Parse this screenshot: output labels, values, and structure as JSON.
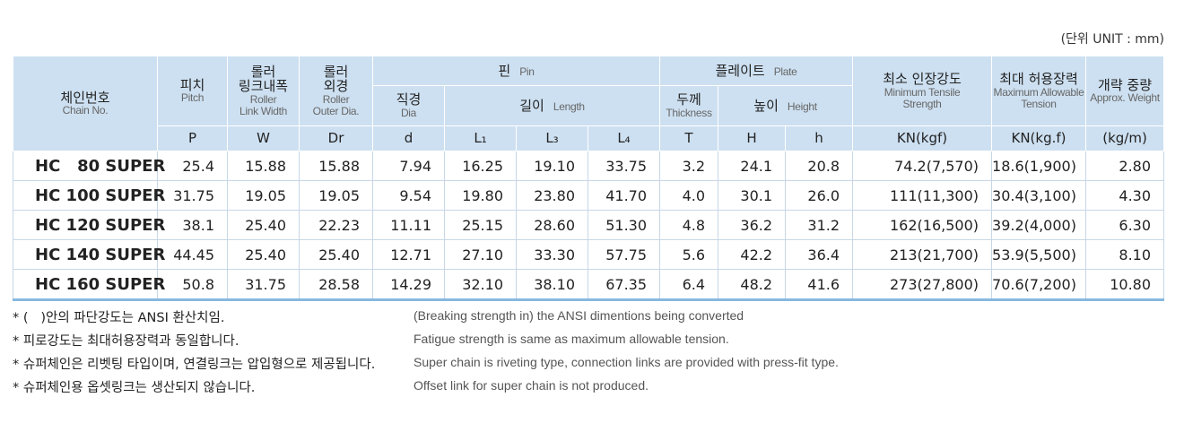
{
  "unit_note": "(단위 UNIT : mm)",
  "table": {
    "header": {
      "chain": {
        "ko": "체인번호",
        "en": "Chain No."
      },
      "pitch": {
        "ko": "피치",
        "en": "Pitch",
        "symbol": "P"
      },
      "width": {
        "ko": [
          "롤러",
          "링크내폭"
        ],
        "en": [
          "Roller",
          "Link Width"
        ],
        "symbol": "W"
      },
      "roller": {
        "ko": [
          "롤러",
          "외경"
        ],
        "en": [
          "Roller",
          "Outer Dia."
        ],
        "symbol": "Dr"
      },
      "pin": {
        "ko": "핀",
        "en": "Pin",
        "dia": {
          "ko": "직경",
          "en": "Dia",
          "symbol": "d"
        },
        "length": {
          "ko": "길이",
          "en": "Length",
          "symbols": [
            "L₁",
            "L₃",
            "L₄"
          ]
        }
      },
      "plate": {
        "ko": "플레이트",
        "en": "Plate",
        "thickness": {
          "ko": "두께",
          "en": "Thickness",
          "symbol": "T"
        },
        "height": {
          "ko": "높이",
          "en": "Height",
          "symbols": [
            "H",
            "h"
          ]
        }
      },
      "tensile": {
        "ko": "최소 인장강도",
        "en": [
          "Minimum Tensile",
          "Strength"
        ],
        "symbol": "KN(kgf)"
      },
      "tension": {
        "ko": "최대 허용장력",
        "en": [
          "Maximum Allowable",
          "Tension"
        ],
        "symbol": "KN(kg.f)"
      },
      "weight": {
        "ko": "개략 중량",
        "en": "Approx. Weight",
        "symbol": "(kg/m)"
      }
    },
    "rows": [
      [
        "HC   80 SUPER",
        "25.4",
        "15.88",
        "15.88",
        "7.94",
        "16.25",
        "19.10",
        "33.75",
        "3.2",
        "24.1",
        "20.8",
        "74.2(7,570)",
        "18.6(1,900)",
        "2.80"
      ],
      [
        "HC 100 SUPER",
        "31.75",
        "19.05",
        "19.05",
        "9.54",
        "19.80",
        "23.80",
        "41.70",
        "4.0",
        "30.1",
        "26.0",
        "111(11,300)",
        "30.4(3,100)",
        "4.30"
      ],
      [
        "HC 120 SUPER",
        "38.1",
        "25.40",
        "22.23",
        "11.11",
        "25.15",
        "28.60",
        "51.30",
        "4.8",
        "36.2",
        "31.2",
        "162(16,500)",
        "39.2(4,000)",
        "6.30"
      ],
      [
        "HC 140 SUPER",
        "44.45",
        "25.40",
        "25.40",
        "12.71",
        "27.10",
        "33.30",
        "57.75",
        "5.6",
        "42.2",
        "36.4",
        "213(21,700)",
        "53.9(5,500)",
        "8.10"
      ],
      [
        "HC 160 SUPER",
        "50.8",
        "31.75",
        "28.58",
        "14.29",
        "32.10",
        "38.10",
        "67.35",
        "6.4",
        "48.2",
        "41.6",
        "273(27,800)",
        "70.6(7,200)",
        "10.80"
      ]
    ]
  },
  "notes": [
    {
      "ko": "* (   )안의 파단강도는 ANSI 환산치임.",
      "en": "(Breaking strength in) the ANSI dimentions being converted"
    },
    {
      "ko": "* 피로강도는 최대허용장력과 동일합니다.",
      "en": "Fatigue strength is same as maximum allowable tension."
    },
    {
      "ko": "* 슈퍼체인은 리벳팅 타입이며, 연결링크는 압입형으로 제공됩니다.",
      "en": "Super chain is riveting type, connection links are provided with press-fit type."
    },
    {
      "ko": "* 슈퍼체인용 옵셋링크는 생산되지 않습니다.",
      "en": "Offset link for super chain is not produced."
    }
  ]
}
